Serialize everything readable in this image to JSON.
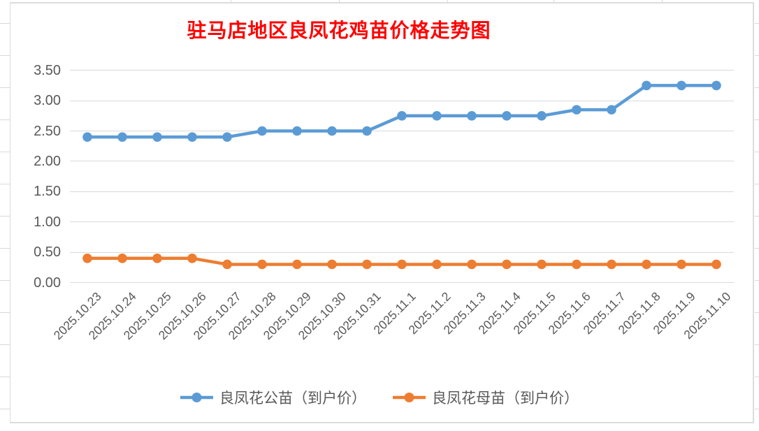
{
  "title": {
    "text": "驻马店地区良凤花鸡苗价格走势图",
    "color": "#FF0000"
  },
  "chart_data": {
    "type": "line",
    "title": "驻马店地区良凤花鸡苗价格走势图",
    "categories": [
      "2025.10.23",
      "2025.10.24",
      "2025.10.25",
      "2025.10.26",
      "2025.10.27",
      "2025.10.28",
      "2025.10.29",
      "2025.10.30",
      "2025.10.31",
      "2025.11.1",
      "2025.11.2",
      "2025.11.3",
      "2025.11.4",
      "2025.11.5",
      "2025.11.6",
      "2025.11.7",
      "2025.11.8",
      "2025.11.9",
      "2025.11.10"
    ],
    "series": [
      {
        "name": "良凤花公苗（到户价）",
        "color": "#5B9BD5",
        "marker": "circle",
        "values": [
          2.4,
          2.4,
          2.4,
          2.4,
          2.4,
          2.5,
          2.5,
          2.5,
          2.5,
          2.75,
          2.75,
          2.75,
          2.75,
          2.75,
          2.85,
          2.85,
          3.25,
          3.25,
          3.25
        ]
      },
      {
        "name": "良凤花母苗（到户价）",
        "color": "#ED7D31",
        "marker": "circle",
        "values": [
          0.4,
          0.4,
          0.4,
          0.4,
          0.3,
          0.3,
          0.3,
          0.3,
          0.3,
          0.3,
          0.3,
          0.3,
          0.3,
          0.3,
          0.3,
          0.3,
          0.3,
          0.3,
          0.3
        ]
      }
    ],
    "xlabel": "",
    "ylabel": "",
    "ylim": [
      0,
      3.5
    ],
    "ytick_step": 0.5,
    "ytick_labels": [
      "0.00",
      "0.50",
      "1.00",
      "1.50",
      "2.00",
      "2.50",
      "3.00",
      "3.50"
    ],
    "grid": true,
    "legend_position": "bottom",
    "axis_text_color": "#595959",
    "gridline_color": "#D9D9D9"
  }
}
